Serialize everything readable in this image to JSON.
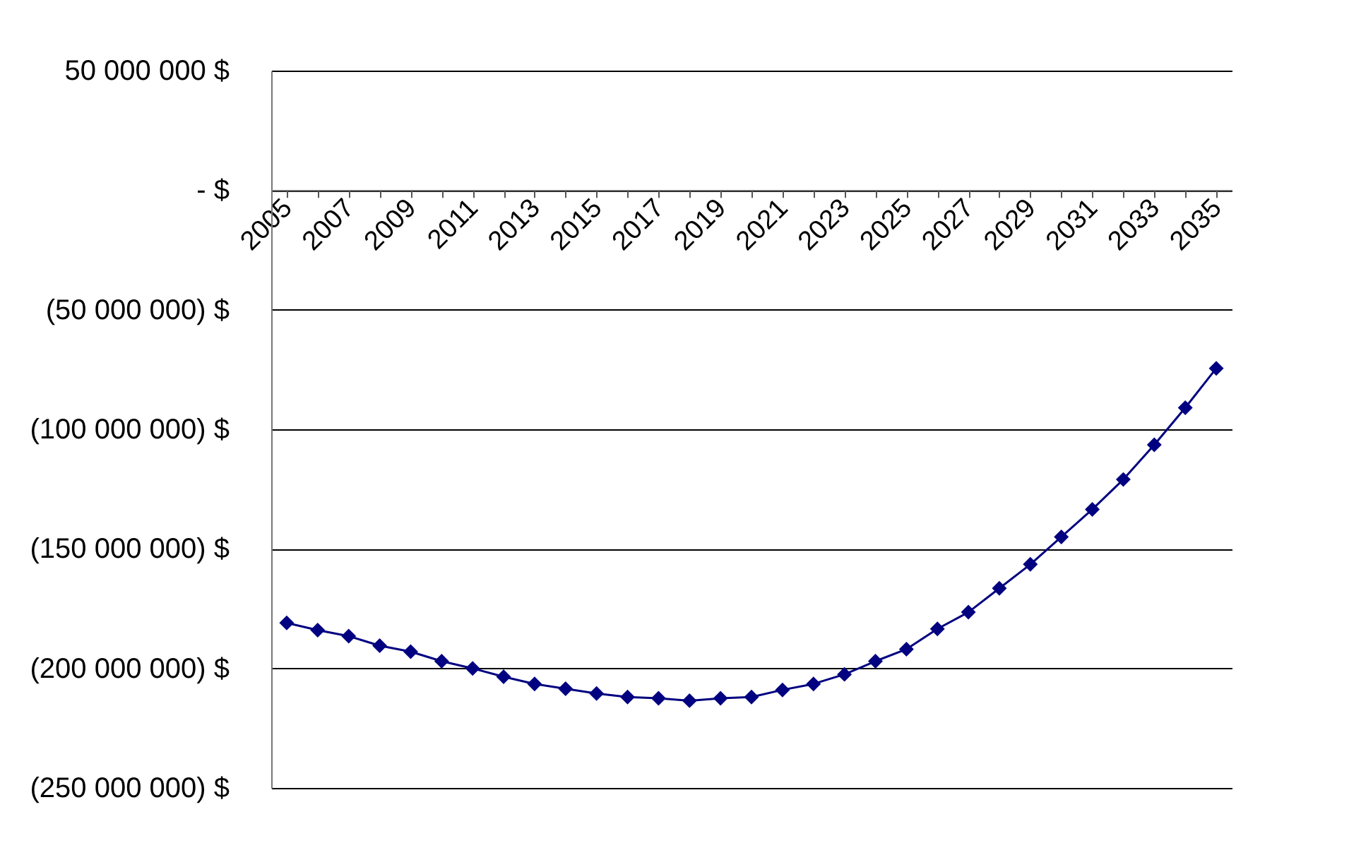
{
  "chart_data": {
    "type": "line",
    "categories": [
      "2005",
      null,
      "2007",
      null,
      "2009",
      null,
      "2011",
      null,
      "2013",
      null,
      "2015",
      null,
      "2017",
      null,
      "2019",
      null,
      "2021",
      null,
      "2023",
      null,
      "2025",
      null,
      "2027",
      null,
      "2029",
      null,
      "2031",
      null,
      "2033",
      null,
      "2035"
    ],
    "series": [
      {
        "color": "#000080",
        "values": [
          -181000000,
          -184000000,
          -186500000,
          -190500000,
          -193000000,
          -197000000,
          -200000000,
          -203500000,
          -206500000,
          -208500000,
          -210500000,
          -212000000,
          -212500000,
          -213500000,
          -212500000,
          -212000000,
          -209000000,
          -206500000,
          -202500000,
          -197000000,
          -192000000,
          -183500000,
          -176500000,
          -166500000,
          -156500000,
          -145000000,
          -133500000,
          -121000000,
          -106500000,
          -91000000,
          -74500000
        ]
      }
    ],
    "ylim": [
      -250000000,
      50000000
    ],
    "yticks": [
      {
        "value": 50000000,
        "label": "50 000 000  $"
      },
      {
        "value": 0,
        "label": "-  $"
      },
      {
        "value": -50000000,
        "label": "(50 000 000) $"
      },
      {
        "value": -100000000,
        "label": "(100 000 000) $"
      },
      {
        "value": -150000000,
        "label": "(150 000 000) $"
      },
      {
        "value": -200000000,
        "label": "(200 000 000) $"
      },
      {
        "value": -250000000,
        "label": "(250 000 000) $"
      }
    ],
    "grid": "y",
    "marker": "diamond",
    "legend": false
  }
}
